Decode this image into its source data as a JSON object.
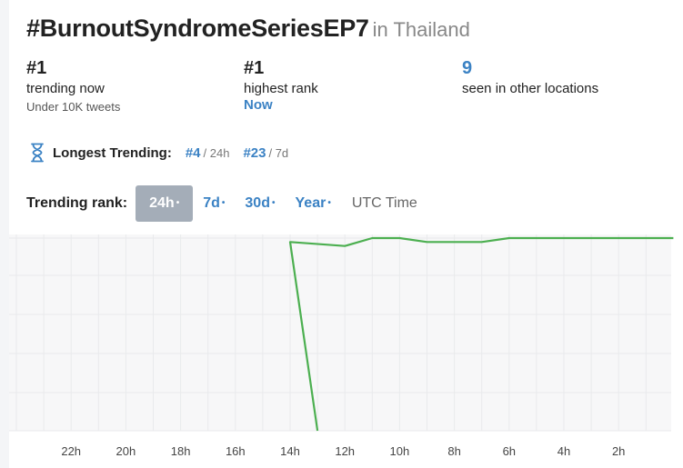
{
  "header": {
    "hashtag": "#BurnoutSyndromeSeriesEP7",
    "location": "in Thailand"
  },
  "stats": [
    {
      "value": "#1",
      "label": "trending now",
      "sub": "Under 10K tweets"
    },
    {
      "value": "#1",
      "label": "highest rank",
      "sub": "Now"
    },
    {
      "value": "9",
      "label": "seen in other locations"
    }
  ],
  "longest": {
    "icon": "hourglass-icon",
    "label": "Longest Trending:",
    "entries": [
      {
        "rank": "#4",
        "period": "/ 24h"
      },
      {
        "rank": "#23",
        "period": "/ 7d"
      }
    ]
  },
  "rank_tabs": {
    "label": "Trending rank:",
    "tabs": [
      {
        "label": "24h",
        "dot": "•",
        "active": true
      },
      {
        "label": "7d",
        "dot": "•",
        "active": false
      },
      {
        "label": "30d",
        "dot": "•",
        "active": false
      },
      {
        "label": "Year",
        "dot": "•",
        "active": false
      }
    ],
    "utc": "UTC Time"
  },
  "colors": {
    "accent": "#3b82c4",
    "line": "#4caf50",
    "grid": "#e9eaec",
    "active_tab": "#a4adb8"
  },
  "chart_data": {
    "type": "line",
    "title": "",
    "xlabel": "",
    "ylabel": "",
    "x_ticks": [
      "22h",
      "20h",
      "18h",
      "16h",
      "14h",
      "12h",
      "10h",
      "8h",
      "6h",
      "4h",
      "2h"
    ],
    "x_unit": "hours ago",
    "x_range": [
      24,
      0
    ],
    "y_range": [
      1,
      50
    ],
    "y_inverted": true,
    "grid": true,
    "series": [
      {
        "x": [
          13,
          14,
          12,
          11,
          10,
          9,
          8,
          7,
          6,
          5,
          4,
          3,
          2,
          1,
          0
        ],
        "values": [
          50,
          2,
          3,
          1,
          1,
          2,
          2,
          2,
          1,
          1,
          1,
          1,
          1,
          1,
          1
        ]
      }
    ]
  }
}
